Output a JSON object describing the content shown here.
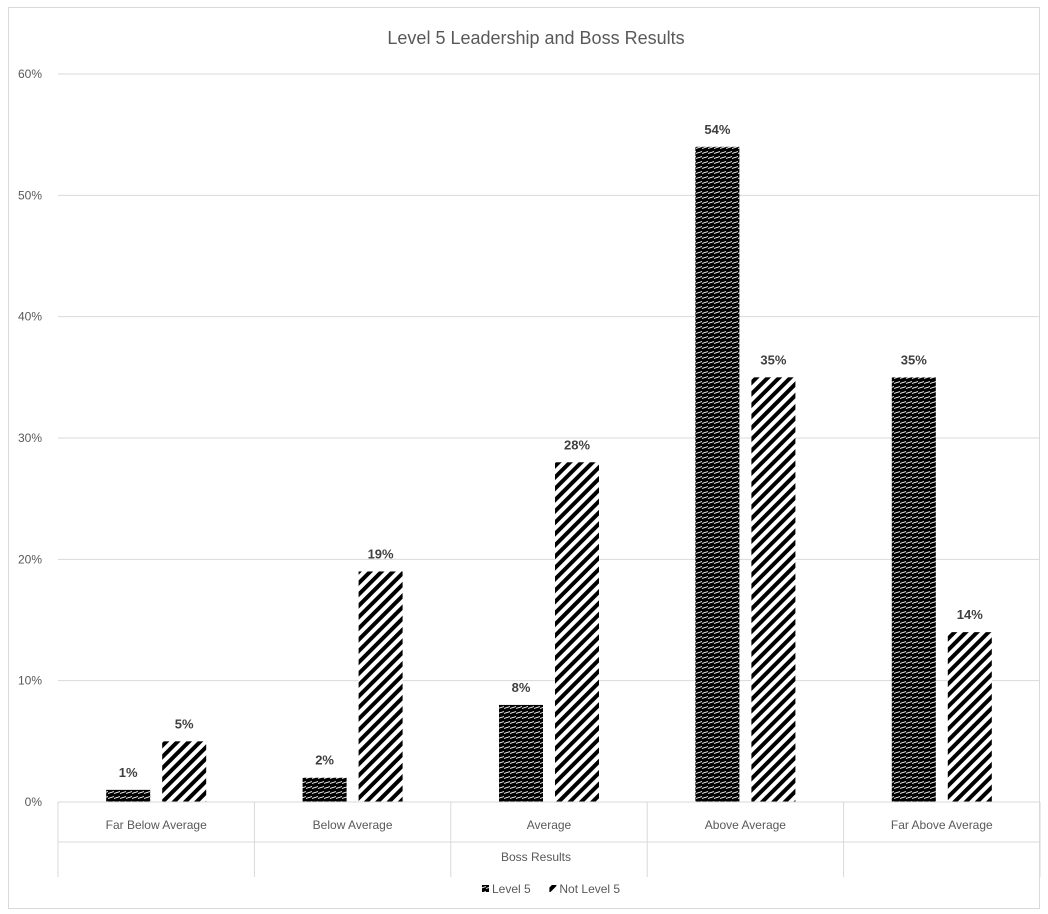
{
  "chart_data": {
    "type": "bar",
    "title": "Level 5 Leadership and Boss Results",
    "xlabel": "Boss Results",
    "ylabel": "",
    "categories": [
      "Far Below Average",
      "Below Average",
      "Average",
      "Above Average",
      "Far Above Average"
    ],
    "series": [
      {
        "name": "Level 5",
        "values": [
          1,
          2,
          8,
          54,
          35
        ],
        "labels": [
          "1%",
          "2%",
          "8%",
          "54%",
          "35%"
        ],
        "pattern": "dense-black-hatch"
      },
      {
        "name": "Not Level 5",
        "values": [
          5,
          19,
          28,
          35,
          14
        ],
        "labels": [
          "5%",
          "19%",
          "28%",
          "35%",
          "14%"
        ],
        "pattern": "diagonal-stripes"
      }
    ],
    "ylim": [
      0,
      60
    ],
    "yticks": [
      "0%",
      "10%",
      "20%",
      "30%",
      "40%",
      "50%",
      "60%"
    ],
    "grid": true,
    "legend_position": "bottom",
    "colors": {
      "bar": "#000000",
      "grid": "#d9d9d9",
      "text": "#595959",
      "label": "#404040"
    }
  }
}
